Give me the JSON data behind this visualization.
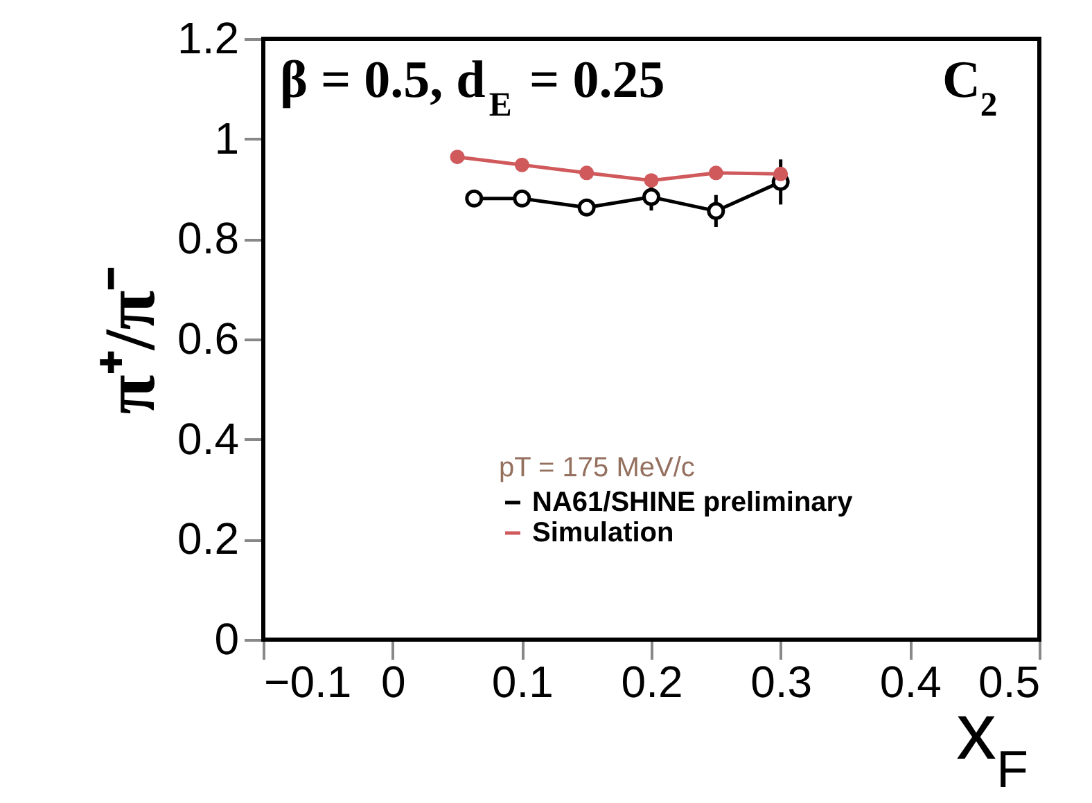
{
  "chart_data": {
    "type": "line",
    "xlabel": "x$_{F}$",
    "ylabel": "π⁺/π⁻",
    "legend_title": "pT = 175 MeV/c",
    "annotations": [
      "β = 0.5, d$_{E}$ = 0.25",
      "C$_{2}$"
    ],
    "series": [
      {
        "name": "NA61/SHINE preliminary",
        "color": "#000000",
        "marker": "circle",
        "x": [
          0.063,
          0.1,
          0.15,
          0.2,
          0.25,
          0.3
        ],
        "values": [
          0.881,
          0.881,
          0.863,
          0.884,
          0.856,
          0.914
        ],
        "errors": [
          0.01,
          0.01,
          0.01,
          0.027,
          0.032,
          0.045
        ]
      },
      {
        "name": "Simulation",
        "color": "#d0595c",
        "marker": "circle",
        "x": [
          0.05,
          0.1,
          0.15,
          0.2,
          0.25,
          0.3
        ],
        "values": [
          0.964,
          0.948,
          0.932,
          0.917,
          0.932,
          0.93
        ]
      }
    ],
    "xlim": [
      -0.1,
      0.5
    ],
    "ylim": [
      0,
      1.2
    ],
    "xticks": [
      {
        "value": -0.1,
        "label": "−0.1"
      },
      0,
      0.1,
      0.2,
      0.3,
      0.4,
      0.5
    ],
    "yticks": [
      0,
      0.2,
      0.4,
      0.6,
      0.8,
      1,
      1.2
    ],
    "legend": "bottom",
    "grid": false
  }
}
